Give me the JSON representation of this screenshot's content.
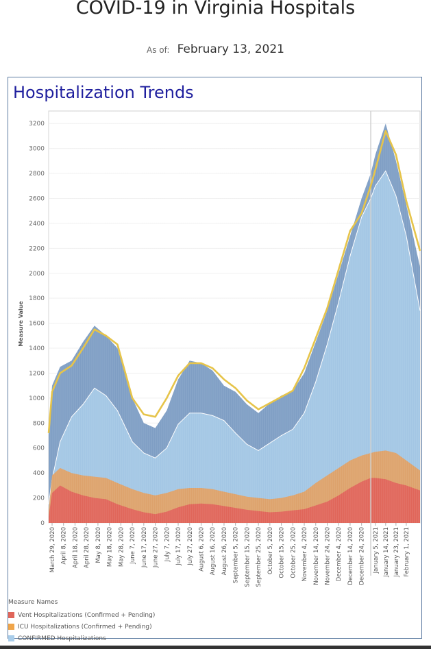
{
  "header": {
    "title": "COVID-19 in Virginia Hospitals",
    "as_of_label": "As of:",
    "as_of_date": "February 13, 2021"
  },
  "panel": {
    "title": "Hospitalization Trends"
  },
  "legend": {
    "title": "Measure Names",
    "items": [
      {
        "label": "Vent Hospitalizations (Confirmed + Pending)",
        "color": "#e0665a"
      },
      {
        "label": "ICU Hospitalizations (Confirmed + Pending)",
        "color": "#f0a54a"
      },
      {
        "label": "CONFIRMED Hospitalizations",
        "color": "#a9cdea"
      }
    ]
  },
  "colors": {
    "total_area": "#7f9ec4",
    "confirmed_area": "#a3c6e4",
    "icu_area": "#dda26c",
    "vent_area": "#e0665a",
    "trend_line": "#e6c44a",
    "divider": "#d0d0d0"
  },
  "chart_data": {
    "type": "area",
    "xlabel": "",
    "ylabel": "Measure Value",
    "ylim": [
      0,
      3300
    ],
    "yticks": [
      0,
      200,
      400,
      600,
      800,
      1000,
      1200,
      1400,
      1600,
      1800,
      2000,
      2200,
      2400,
      2600,
      2800,
      3000,
      3200
    ],
    "x_start": "2020-03-26",
    "x_end": "2021-02-13",
    "xtick_labels": [
      "March 29, 2020",
      "April 8, 2020",
      "April 18, 2020",
      "April 28, 2020",
      "May 8, 2020",
      "May 18, 2020",
      "May 28, 2020",
      "June 7, 2020",
      "June 17, 2020",
      "June 27, 2020",
      "July 7, 2020",
      "July 17, 2020",
      "July 27, 2020",
      "August 6, 2020",
      "August 16, 2020",
      "August 26, 2020",
      "September 5, 2020",
      "September 15, 2020",
      "September 25, 2020",
      "October 5, 2020",
      "October 15, 2020",
      "October 25, 2020",
      "November 4, 2020",
      "November 14, 2020",
      "November 24, 2020",
      "December 4, 2020",
      "December 14, 2020",
      "December 24, 2020",
      "January 5, 2021",
      "January 14, 2021",
      "January 23, 2021",
      "February 1, 2021"
    ],
    "xtick_dates": [
      "2020-03-29",
      "2020-04-08",
      "2020-04-18",
      "2020-04-28",
      "2020-05-08",
      "2020-05-18",
      "2020-05-28",
      "2020-06-07",
      "2020-06-17",
      "2020-06-27",
      "2020-07-07",
      "2020-07-17",
      "2020-07-27",
      "2020-08-06",
      "2020-08-16",
      "2020-08-26",
      "2020-09-05",
      "2020-09-15",
      "2020-09-25",
      "2020-10-05",
      "2020-10-15",
      "2020-10-25",
      "2020-11-04",
      "2020-11-14",
      "2020-11-24",
      "2020-12-04",
      "2020-12-14",
      "2020-12-24",
      "2021-01-05",
      "2021-01-14",
      "2021-01-23",
      "2021-02-01"
    ],
    "divider_date": "2021-01-01",
    "series": [
      {
        "name": "Vent Hospitalizations (Confirmed + Pending)",
        "x": [
          "2020-03-26",
          "2020-03-29",
          "2020-04-05",
          "2020-04-15",
          "2020-04-25",
          "2020-05-05",
          "2020-05-15",
          "2020-05-25",
          "2020-06-07",
          "2020-06-17",
          "2020-06-27",
          "2020-07-07",
          "2020-07-17",
          "2020-07-27",
          "2020-08-06",
          "2020-08-16",
          "2020-08-26",
          "2020-09-05",
          "2020-09-15",
          "2020-09-25",
          "2020-10-05",
          "2020-10-15",
          "2020-10-25",
          "2020-11-04",
          "2020-11-14",
          "2020-11-24",
          "2020-12-04",
          "2020-12-14",
          "2020-12-24",
          "2021-01-01",
          "2021-01-05",
          "2021-01-14",
          "2021-01-23",
          "2021-02-01",
          "2021-02-13"
        ],
        "values": [
          50,
          240,
          300,
          250,
          220,
          200,
          190,
          150,
          110,
          85,
          70,
          90,
          125,
          150,
          155,
          150,
          135,
          120,
          105,
          95,
          85,
          90,
          100,
          110,
          140,
          170,
          220,
          280,
          330,
          360,
          360,
          350,
          320,
          300,
          260
        ]
      },
      {
        "name": "ICU Hospitalizations (Confirmed + Pending)",
        "x": [
          "2020-03-26",
          "2020-03-29",
          "2020-04-05",
          "2020-04-15",
          "2020-04-25",
          "2020-05-05",
          "2020-05-15",
          "2020-05-25",
          "2020-06-07",
          "2020-06-17",
          "2020-06-27",
          "2020-07-07",
          "2020-07-17",
          "2020-07-27",
          "2020-08-06",
          "2020-08-16",
          "2020-08-26",
          "2020-09-05",
          "2020-09-15",
          "2020-09-25",
          "2020-10-05",
          "2020-10-15",
          "2020-10-25",
          "2020-11-04",
          "2020-11-14",
          "2020-11-24",
          "2020-12-04",
          "2020-12-14",
          "2020-12-24",
          "2021-01-01",
          "2021-01-05",
          "2021-01-14",
          "2021-01-23",
          "2021-02-01",
          "2021-02-13"
        ],
        "values": [
          100,
          380,
          440,
          400,
          380,
          370,
          360,
          320,
          270,
          240,
          220,
          240,
          270,
          280,
          280,
          270,
          250,
          230,
          210,
          200,
          190,
          200,
          220,
          250,
          320,
          380,
          440,
          500,
          540,
          560,
          570,
          580,
          560,
          500,
          420
        ]
      },
      {
        "name": "CONFIRMED Hospitalizations",
        "x": [
          "2020-03-26",
          "2020-03-29",
          "2020-04-05",
          "2020-04-15",
          "2020-04-25",
          "2020-05-05",
          "2020-05-15",
          "2020-05-25",
          "2020-06-07",
          "2020-06-17",
          "2020-06-27",
          "2020-07-07",
          "2020-07-17",
          "2020-07-27",
          "2020-08-06",
          "2020-08-16",
          "2020-08-26",
          "2020-09-05",
          "2020-09-15",
          "2020-09-25",
          "2020-10-05",
          "2020-10-15",
          "2020-10-25",
          "2020-11-04",
          "2020-11-14",
          "2020-11-24",
          "2020-12-04",
          "2020-12-14",
          "2020-12-24",
          "2021-01-01",
          "2021-01-05",
          "2021-01-14",
          "2021-01-23",
          "2021-02-01",
          "2021-02-13"
        ],
        "values": [
          150,
          350,
          650,
          850,
          950,
          1080,
          1020,
          900,
          650,
          560,
          520,
          600,
          790,
          880,
          880,
          860,
          820,
          720,
          630,
          580,
          640,
          700,
          750,
          880,
          1130,
          1430,
          1770,
          2140,
          2450,
          2600,
          2700,
          2820,
          2620,
          2300,
          1700
        ]
      },
      {
        "name": "",
        "x": [
          "2020-03-26",
          "2020-03-29",
          "2020-04-05",
          "2020-04-15",
          "2020-04-25",
          "2020-05-05",
          "2020-05-15",
          "2020-05-25",
          "2020-06-07",
          "2020-06-17",
          "2020-06-27",
          "2020-07-07",
          "2020-07-17",
          "2020-07-27",
          "2020-08-06",
          "2020-08-16",
          "2020-08-26",
          "2020-09-05",
          "2020-09-15",
          "2020-09-25",
          "2020-10-05",
          "2020-10-15",
          "2020-10-25",
          "2020-11-04",
          "2020-11-14",
          "2020-11-24",
          "2020-12-04",
          "2020-12-14",
          "2020-12-24",
          "2021-01-01",
          "2021-01-05",
          "2021-01-14",
          "2021-01-23",
          "2021-02-01",
          "2021-02-13"
        ],
        "values": [
          700,
          1100,
          1250,
          1300,
          1450,
          1580,
          1500,
          1400,
          1000,
          800,
          760,
          900,
          1150,
          1300,
          1280,
          1220,
          1100,
          1050,
          950,
          880,
          960,
          1020,
          1060,
          1200,
          1450,
          1700,
          2000,
          2300,
          2600,
          2800,
          2950,
          3200,
          2900,
          2550,
          2050
        ]
      },
      {
        "name": "",
        "x": [
          "2020-03-26",
          "2020-03-29",
          "2020-04-05",
          "2020-04-15",
          "2020-04-25",
          "2020-05-05",
          "2020-05-15",
          "2020-05-25",
          "2020-06-07",
          "2020-06-17",
          "2020-06-27",
          "2020-07-07",
          "2020-07-17",
          "2020-07-27",
          "2020-08-06",
          "2020-08-16",
          "2020-08-26",
          "2020-09-05",
          "2020-09-15",
          "2020-09-25",
          "2020-10-05",
          "2020-10-15",
          "2020-10-25",
          "2020-11-04",
          "2020-11-14",
          "2020-11-24",
          "2020-12-04",
          "2020-12-14",
          "2020-12-24",
          "2021-01-01",
          "2021-01-05",
          "2021-01-14",
          "2021-01-23",
          "2021-02-01",
          "2021-02-13"
        ],
        "values": [
          720,
          1050,
          1200,
          1260,
          1400,
          1550,
          1500,
          1430,
          1000,
          870,
          850,
          1000,
          1180,
          1280,
          1280,
          1240,
          1150,
          1080,
          980,
          910,
          960,
          1010,
          1060,
          1240,
          1480,
          1720,
          2030,
          2340,
          2480,
          2700,
          2830,
          3140,
          2950,
          2580,
          2180
        ]
      }
    ]
  }
}
